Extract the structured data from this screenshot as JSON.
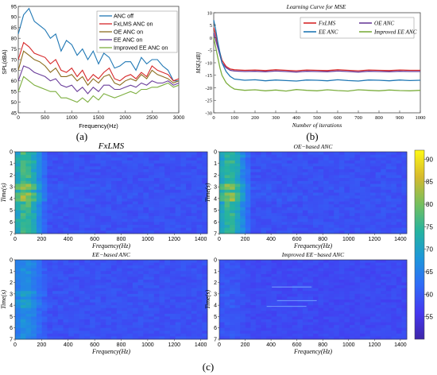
{
  "panel_labels": {
    "a": "(a)",
    "b": "(b)",
    "c": "(c)"
  },
  "chart_data": [
    {
      "type": "line",
      "panel": "(a)",
      "ylabel": "SPL(dBA)",
      "xlabel": "Frequency(Hz)",
      "xlim": [
        0,
        3000
      ],
      "ylim": [
        45,
        95
      ],
      "xticks": [
        "0",
        "500",
        "1000",
        "1500",
        "2000",
        "2500",
        "3000"
      ],
      "yticks": [
        "45",
        "50",
        "55",
        "60",
        "65",
        "70",
        "75",
        "80",
        "85",
        "90",
        "95"
      ],
      "grid": false,
      "legend_position": "top-right",
      "x": [
        0,
        100,
        200,
        300,
        400,
        500,
        600,
        700,
        800,
        900,
        1000,
        1100,
        1200,
        1300,
        1400,
        1500,
        1600,
        1700,
        1800,
        1900,
        2000,
        2100,
        2200,
        2300,
        2400,
        2500,
        2600,
        2700,
        2800,
        2900,
        3000
      ],
      "series": [
        {
          "name": "ANC off",
          "color": "#1f77b4",
          "values": [
            82,
            91,
            94,
            88,
            86,
            84,
            80,
            82,
            74,
            79,
            77,
            72,
            75,
            70,
            74,
            68,
            73,
            71,
            66,
            67,
            69,
            69,
            65,
            71,
            68,
            70,
            70,
            67,
            65,
            60,
            60
          ]
        },
        {
          "name": "FxLMS ANC on",
          "color": "#d62728",
          "values": [
            70,
            78,
            76,
            73,
            72,
            71,
            68,
            70,
            65,
            64,
            66,
            62,
            65,
            60,
            63,
            61,
            64,
            66,
            61,
            60,
            62,
            63,
            61,
            64,
            62,
            67,
            65,
            64,
            63,
            60,
            61
          ]
        },
        {
          "name": "OE ANC on",
          "color": "#8c6d1f",
          "values": [
            65,
            74,
            72,
            70,
            69,
            67,
            64,
            66,
            62,
            62,
            63,
            60,
            62,
            58,
            61,
            59,
            62,
            63,
            59,
            58,
            60,
            61,
            60,
            63,
            61,
            65,
            63,
            62,
            61,
            59,
            60
          ]
        },
        {
          "name": "EE ANC on",
          "color": "#6a3d9a",
          "values": [
            60,
            67,
            66,
            64,
            63,
            62,
            60,
            61,
            58,
            57,
            58,
            55,
            57,
            54,
            57,
            55,
            58,
            58,
            56,
            56,
            57,
            58,
            57,
            59,
            58,
            60,
            59,
            59,
            60,
            58,
            59
          ]
        },
        {
          "name": "Improved EE ANC on",
          "color": "#7cae3e",
          "values": [
            55,
            62,
            60,
            58,
            57,
            56,
            55,
            55,
            52,
            52,
            51,
            50,
            52,
            50,
            53,
            51,
            54,
            53,
            52,
            53,
            54,
            55,
            54,
            56,
            56,
            57,
            57,
            58,
            59,
            57,
            58
          ]
        }
      ]
    },
    {
      "type": "line",
      "panel": "(b)",
      "title": "Learning Curve for MSE",
      "xlabel": "Number of iterations",
      "ylabel": "MSE[dB]",
      "xlim": [
        0,
        1000
      ],
      "ylim": [
        -30,
        10
      ],
      "xticks": [
        "0",
        "100",
        "200",
        "300",
        "400",
        "500",
        "600",
        "700",
        "800",
        "900",
        "1000"
      ],
      "yticks": [
        "-30",
        "-25",
        "-20",
        "-15",
        "-10",
        "-5",
        "0",
        "5",
        "10"
      ],
      "grid": false,
      "legend_position": "top",
      "x": [
        0,
        10,
        20,
        30,
        40,
        60,
        80,
        100,
        150,
        200,
        250,
        300,
        350,
        400,
        450,
        500,
        550,
        600,
        650,
        700,
        750,
        800,
        850,
        900,
        950,
        1000
      ],
      "series": [
        {
          "name": "FxLMS",
          "color": "#d62728",
          "values": [
            4,
            1,
            -3,
            -6,
            -9,
            -11.5,
            -12.5,
            -12.8,
            -13,
            -12.9,
            -13.1,
            -12.8,
            -13,
            -13.2,
            -12.9,
            -13,
            -13.1,
            -12.8,
            -13,
            -13.2,
            -12.9,
            -13,
            -13.1,
            -12.9,
            -13,
            -13
          ]
        },
        {
          "name": "OE ANC",
          "color": "#6a3d9a",
          "values": [
            2,
            -1,
            -4,
            -7,
            -10,
            -12,
            -13,
            -13.3,
            -13.5,
            -13.4,
            -13.6,
            -13.3,
            -13.5,
            -13.7,
            -13.4,
            -13.5,
            -13.6,
            -13.3,
            -13.5,
            -13.7,
            -13.4,
            -13.5,
            -13.6,
            -13.4,
            -13.5,
            -13.5
          ]
        },
        {
          "name": "EE ANC",
          "color": "#1f77b4",
          "values": [
            7,
            3,
            -2,
            -6,
            -10,
            -13.5,
            -15.5,
            -16.5,
            -17,
            -16.8,
            -17.2,
            -16.9,
            -17.1,
            -17.3,
            -16.9,
            -17,
            -17.2,
            -16.8,
            -17.1,
            -17.3,
            -16.9,
            -17,
            -17.2,
            -16.9,
            -17.1,
            -17
          ]
        },
        {
          "name": "Improved EE ANC",
          "color": "#7cae3e",
          "values": [
            0,
            -4,
            -8,
            -12,
            -15,
            -18,
            -19.5,
            -20.5,
            -21,
            -20.8,
            -21.2,
            -20.9,
            -21.3,
            -20.7,
            -21,
            -21.2,
            -20.8,
            -21.1,
            -21.3,
            -20.8,
            -21,
            -21.2,
            -20.9,
            -21.1,
            -21.2,
            -21
          ]
        }
      ]
    },
    {
      "type": "heatmap",
      "panel": "(c)",
      "subplots": [
        {
          "title": "FxLMS",
          "strength": 1.0
        },
        {
          "title": "OE−based ANC",
          "strength": 0.95
        },
        {
          "title": "EE−based ANC",
          "strength": 0.45
        },
        {
          "title": "Improved EE−based ANC",
          "strength": 0.1
        }
      ],
      "xlabel": "Frequency(Hz)",
      "ylabel": "Time(s)",
      "xlim": [
        0,
        1450
      ],
      "ylim": [
        0,
        7
      ],
      "xticks": [
        "0",
        "200",
        "400",
        "600",
        "800",
        "1000",
        "1200",
        "1400"
      ],
      "yticks": [
        "0",
        "1",
        "2",
        "3",
        "4",
        "5",
        "6",
        "7"
      ],
      "colorbar": {
        "range": [
          50,
          92
        ],
        "ticks": [
          "55",
          "60",
          "65",
          "70",
          "75",
          "80",
          "85",
          "90"
        ],
        "stops": [
          "#3e26a8",
          "#4538f0",
          "#2f6cf7",
          "#1d97da",
          "#25b3a0",
          "#72bf60",
          "#d7ba2d",
          "#fef814"
        ]
      }
    }
  ]
}
